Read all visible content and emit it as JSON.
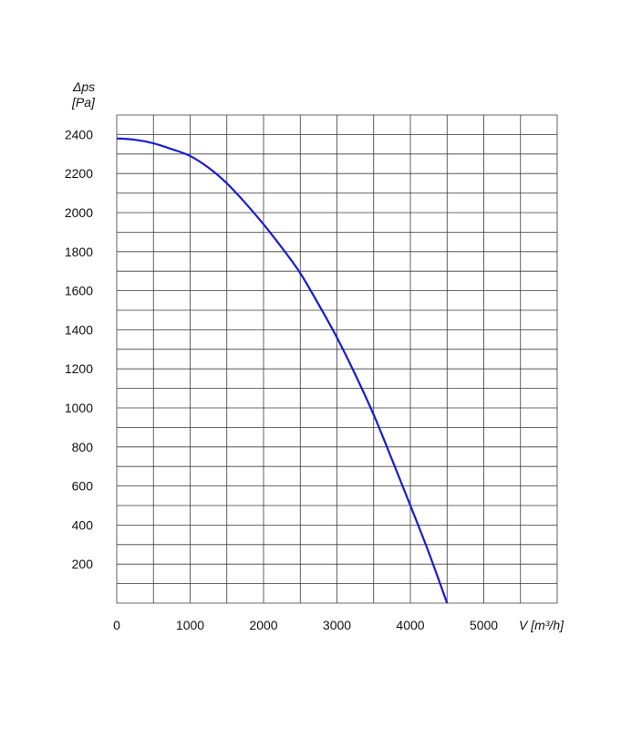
{
  "chart_data": {
    "type": "line",
    "ylabel_line1": "Δps",
    "ylabel_line2": "[Pa]",
    "xlabel": "V [m³/h]",
    "xlim": [
      0,
      6000
    ],
    "ylim": [
      0,
      2500
    ],
    "x_ticks": [
      0,
      1000,
      2000,
      3000,
      4000,
      5000
    ],
    "x_tick_labels": [
      "0",
      "1000",
      "2000",
      "3000",
      "4000",
      "5000"
    ],
    "y_ticks": [
      200,
      400,
      600,
      800,
      1000,
      1200,
      1400,
      1600,
      1800,
      2000,
      2200,
      2400
    ],
    "y_tick_labels": [
      "200",
      "400",
      "600",
      "800",
      "1000",
      "1200",
      "1400",
      "1600",
      "1800",
      "2000",
      "2200",
      "2400"
    ],
    "x_minor_step": 500,
    "y_minor_step": 100,
    "grid": true,
    "series": [
      {
        "color": "#1a1ad6",
        "x": [
          0,
          250,
          500,
          750,
          1000,
          1250,
          1500,
          1750,
          2000,
          2250,
          2500,
          2750,
          3000,
          3250,
          3500,
          3750,
          4000,
          4250,
          4500
        ],
        "y": [
          2380,
          2373,
          2355,
          2325,
          2290,
          2230,
          2150,
          2050,
          1940,
          1820,
          1690,
          1530,
          1360,
          1170,
          965,
          735,
          500,
          260,
          0
        ]
      }
    ]
  }
}
